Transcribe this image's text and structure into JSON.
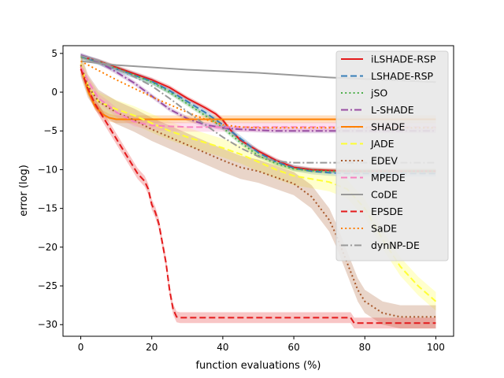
{
  "chart_data": {
    "type": "line",
    "title": "",
    "xlabel": "function evaluations (%)",
    "ylabel": "error (log)",
    "xlim": [
      -5,
      105
    ],
    "ylim": [
      -31.5,
      6
    ],
    "xticks": [
      0,
      20,
      40,
      60,
      80,
      100
    ],
    "yticks": [
      5,
      0,
      -5,
      -10,
      -15,
      -20,
      -25,
      -30
    ],
    "xtick_labels": [
      "0",
      "20",
      "40",
      "60",
      "80",
      "100"
    ],
    "ytick_labels": [
      "5",
      "0",
      "−5",
      "−10",
      "−15",
      "−20",
      "−25",
      "−30"
    ],
    "legend_position": "top-right",
    "series": [
      {
        "name": "iLSHADE-RSP",
        "color": "#e41a1c",
        "style": "solid",
        "band": 0.3,
        "x": [
          0,
          5,
          10,
          15,
          20,
          25,
          30,
          35,
          38,
          40,
          42,
          45,
          50,
          55,
          60,
          65,
          70,
          75,
          80,
          85,
          90,
          95,
          100
        ],
        "y": [
          4.6,
          4.0,
          3.2,
          2.4,
          1.6,
          0.6,
          -0.8,
          -2.0,
          -2.8,
          -3.6,
          -4.8,
          -6.2,
          -7.6,
          -8.8,
          -9.7,
          -10.0,
          -10.1,
          -10.2,
          -10.2,
          -10.2,
          -10.2,
          -10.2,
          -10.2
        ]
      },
      {
        "name": "LSHADE-RSP",
        "color": "#377eb8",
        "style": "dashed",
        "band": 0.4,
        "x": [
          0,
          5,
          10,
          15,
          20,
          25,
          30,
          35,
          40,
          45,
          50,
          55,
          60,
          65,
          70,
          75,
          80,
          85,
          90,
          95,
          100
        ],
        "y": [
          4.6,
          3.9,
          3.0,
          2.2,
          1.4,
          0.2,
          -1.2,
          -2.6,
          -4.2,
          -6.0,
          -7.8,
          -9.0,
          -9.8,
          -10.2,
          -10.4,
          -10.5,
          -10.5,
          -10.5,
          -10.5,
          -10.5,
          -10.5
        ]
      },
      {
        "name": "jSO",
        "color": "#4daf4a",
        "style": "dotted",
        "band": 0.3,
        "x": [
          0,
          5,
          10,
          15,
          20,
          25,
          30,
          35,
          40,
          45,
          50,
          55,
          60,
          65,
          70,
          75,
          80,
          85,
          90,
          95,
          100
        ],
        "y": [
          4.6,
          3.9,
          3.1,
          2.2,
          1.3,
          0.0,
          -1.5,
          -3.0,
          -4.6,
          -6.5,
          -8.2,
          -9.2,
          -9.9,
          -10.1,
          -10.2,
          -10.2,
          -10.2,
          -10.2,
          -10.2,
          -10.2,
          -10.2
        ]
      },
      {
        "name": "L-SHADE",
        "color": "#984ea3",
        "style": "dashdot",
        "band": 0.3,
        "x": [
          0,
          5,
          10,
          15,
          20,
          25,
          30,
          35,
          40,
          45,
          50,
          55,
          60,
          70,
          80,
          90,
          100
        ],
        "y": [
          4.8,
          3.9,
          2.6,
          1.2,
          -0.5,
          -2.2,
          -3.4,
          -4.2,
          -4.6,
          -4.8,
          -4.9,
          -5.0,
          -5.0,
          -5.0,
          -5.0,
          -5.0,
          -5.0
        ]
      },
      {
        "name": "SHADE",
        "color": "#ff7f00",
        "style": "solid",
        "band": 0.5,
        "x": [
          0,
          2,
          4,
          6,
          8,
          10,
          15,
          20,
          30,
          40,
          50,
          60,
          70,
          80,
          90,
          100
        ],
        "y": [
          3.3,
          0.2,
          -1.8,
          -2.8,
          -3.3,
          -3.5,
          -3.5,
          -3.5,
          -3.5,
          -3.5,
          -3.5,
          -3.5,
          -3.5,
          -3.5,
          -3.5,
          -3.5
        ]
      },
      {
        "name": "JADE",
        "color": "#ffff33",
        "style": "dashed",
        "band": 1.2,
        "x": [
          0,
          2,
          5,
          10,
          15,
          20,
          25,
          30,
          35,
          40,
          45,
          50,
          55,
          60,
          65,
          70,
          75,
          80,
          85,
          90,
          95,
          100
        ],
        "y": [
          3.6,
          0.8,
          -1.2,
          -2.2,
          -3.0,
          -4.0,
          -5.0,
          -5.8,
          -6.5,
          -7.2,
          -8.0,
          -9.0,
          -10.0,
          -10.8,
          -11.2,
          -11.6,
          -12.5,
          -15.0,
          -19.0,
          -22.5,
          -25.0,
          -27.0
        ]
      },
      {
        "name": "EDEV",
        "color": "#a65628",
        "style": "dotted",
        "band": 1.5,
        "x": [
          0,
          2,
          5,
          10,
          15,
          20,
          25,
          30,
          35,
          40,
          45,
          50,
          55,
          60,
          65,
          70,
          72,
          75,
          78,
          80,
          85,
          90,
          95,
          100
        ],
        "y": [
          3.5,
          0.8,
          -1.2,
          -2.6,
          -3.6,
          -4.8,
          -5.8,
          -6.8,
          -7.8,
          -8.8,
          -9.7,
          -10.2,
          -11.0,
          -11.8,
          -13.5,
          -16.5,
          -18.5,
          -22.0,
          -25.5,
          -27.0,
          -28.5,
          -29.0,
          -29.0,
          -29.0
        ]
      },
      {
        "name": "MPEDE",
        "color": "#f781bf",
        "style": "dashed",
        "band": 0.6,
        "x": [
          0,
          2,
          5,
          8,
          10,
          15,
          20,
          25,
          30,
          40,
          50,
          60,
          70,
          80,
          90,
          100
        ],
        "y": [
          3.3,
          1.5,
          -0.8,
          -1.8,
          -2.6,
          -3.8,
          -4.3,
          -4.4,
          -4.5,
          -4.5,
          -4.5,
          -4.5,
          -4.5,
          -4.5,
          -4.5,
          -4.5
        ]
      },
      {
        "name": "CoDE",
        "color": "#999999",
        "style": "solid",
        "band": 0,
        "x": [
          0,
          10,
          20,
          30,
          40,
          50,
          60,
          70,
          80,
          90,
          100
        ],
        "y": [
          4.0,
          3.5,
          3.2,
          2.9,
          2.7,
          2.5,
          2.2,
          1.9,
          1.7,
          1.5,
          1.3
        ]
      },
      {
        "name": "EPSDE",
        "color": "#e41a1c",
        "style": "dashed",
        "band": 0.7,
        "x": [
          0,
          2,
          4,
          6,
          8,
          10,
          12,
          14,
          16,
          18,
          19,
          20,
          21,
          22,
          23,
          24,
          25,
          26,
          27,
          28,
          30,
          40,
          50,
          60,
          70,
          76,
          77,
          80,
          90,
          100
        ],
        "y": [
          3.0,
          0.5,
          -1.5,
          -3.0,
          -4.5,
          -6.0,
          -7.5,
          -9.0,
          -10.5,
          -11.5,
          -12.5,
          -14.5,
          -15.5,
          -17.0,
          -19.5,
          -22.0,
          -25.5,
          -28.0,
          -29.0,
          -29.1,
          -29.1,
          -29.1,
          -29.1,
          -29.1,
          -29.1,
          -29.1,
          -29.8,
          -29.8,
          -29.8,
          -29.8
        ]
      },
      {
        "name": "SaDE",
        "color": "#ff7f00",
        "style": "dotted",
        "band": 0,
        "x": [
          0,
          5,
          10,
          15,
          20,
          25,
          30,
          35,
          40,
          45,
          50,
          60,
          70,
          80,
          90,
          100
        ],
        "y": [
          4.0,
          2.8,
          1.6,
          0.5,
          -0.6,
          -1.6,
          -2.6,
          -3.5,
          -4.2,
          -4.5,
          -4.6,
          -4.6,
          -4.6,
          -4.6,
          -4.6,
          -4.6
        ]
      },
      {
        "name": "dynNP-DE",
        "color": "#999999",
        "style": "dashdot",
        "band": 0,
        "x": [
          0,
          5,
          10,
          15,
          20,
          25,
          30,
          35,
          40,
          45,
          50,
          55,
          60,
          70,
          80,
          90,
          100
        ],
        "y": [
          4.7,
          4.0,
          3.0,
          2.0,
          0.8,
          -0.8,
          -2.5,
          -4.2,
          -5.8,
          -7.2,
          -8.3,
          -8.9,
          -9.1,
          -9.1,
          -9.1,
          -9.1,
          -9.1
        ]
      }
    ]
  }
}
